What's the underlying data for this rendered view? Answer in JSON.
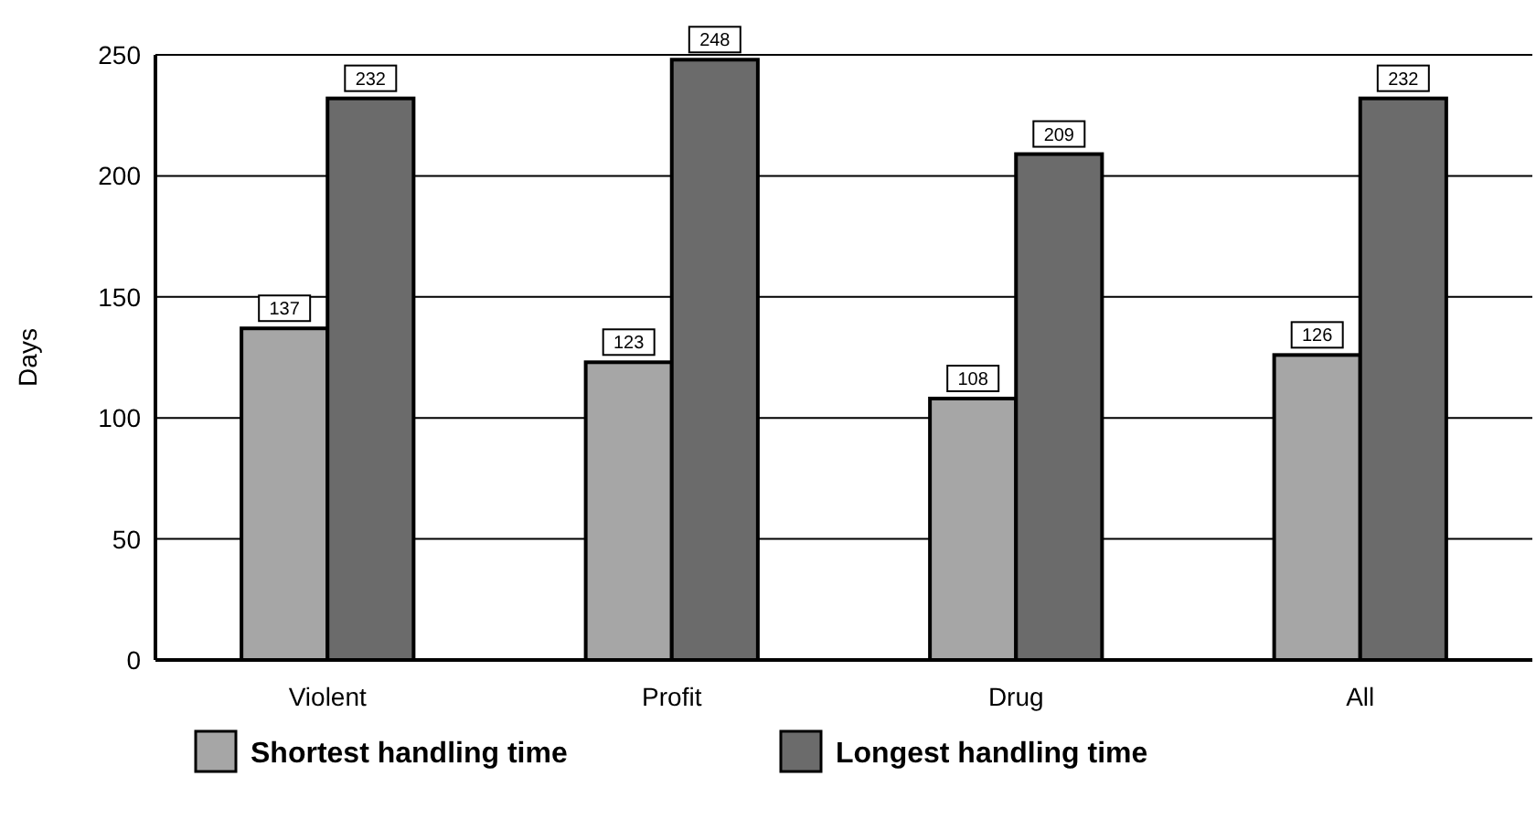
{
  "chart_data": {
    "type": "bar",
    "ylabel": "Days",
    "categories": [
      "Violent",
      "Profit",
      "Drug",
      "All"
    ],
    "series": [
      {
        "name": "Shortest handling time",
        "color": "#a6a6a6",
        "values": [
          137,
          123,
          108,
          126
        ]
      },
      {
        "name": "Longest handling time",
        "color": "#6b6b6b",
        "values": [
          232,
          248,
          209,
          232
        ]
      }
    ],
    "ylim": [
      0,
      250
    ],
    "yticks": [
      0,
      50,
      100,
      150,
      200,
      250
    ],
    "grid": "y",
    "legend": "bottom",
    "data_labels": true
  }
}
